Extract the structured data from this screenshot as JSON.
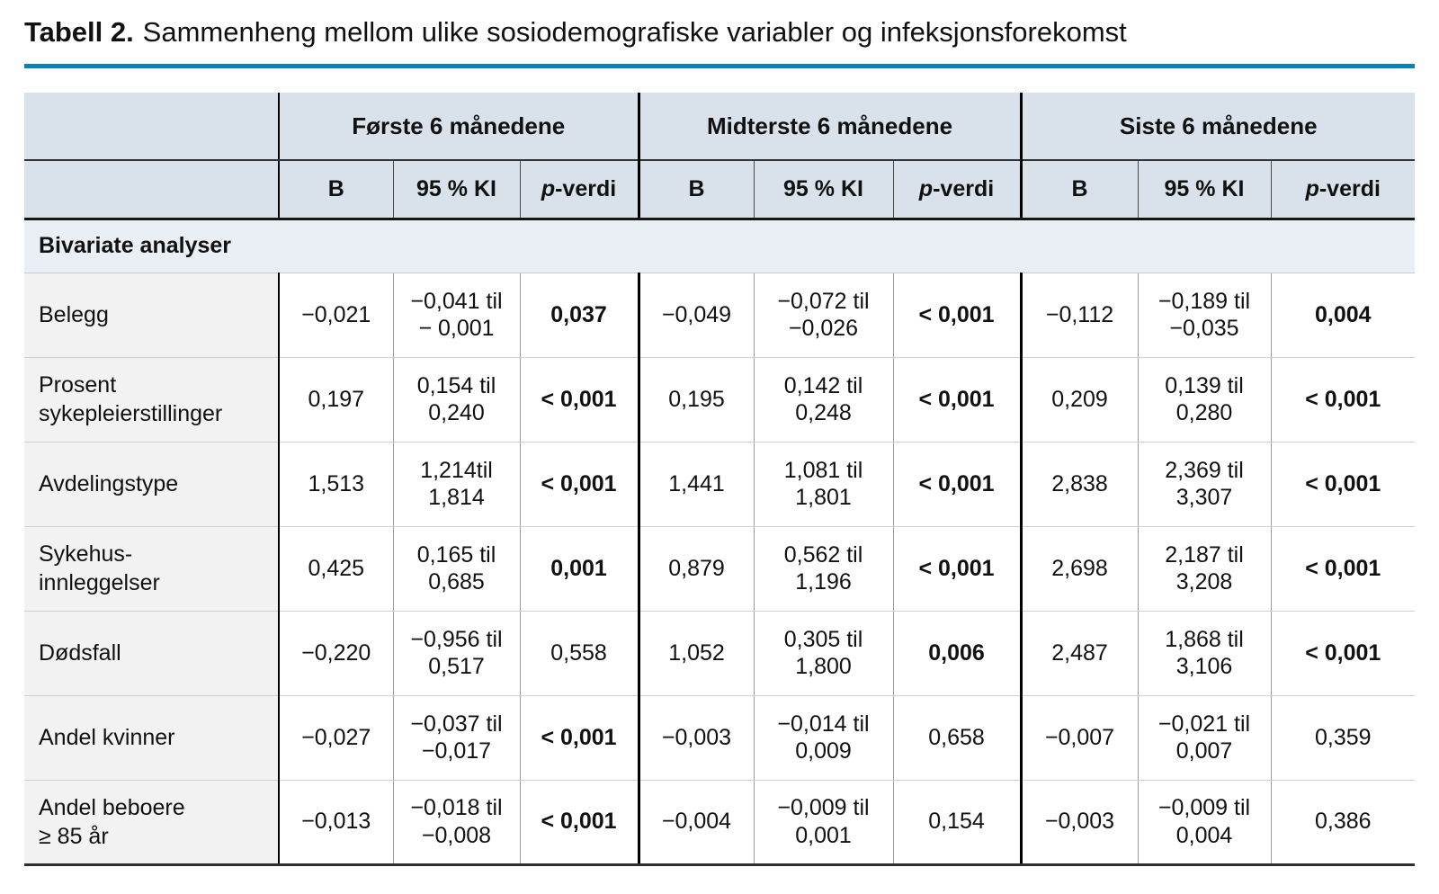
{
  "title": {
    "label": "Tabell 2.",
    "text": "Sammenheng mellom ulike sosiodemografiske variabler og infeksjonsforekomst"
  },
  "colors": {
    "header_background": "#d9e2eb",
    "section_background": "#eaeef5",
    "label_column_background": "#f2f2f2",
    "title_rule": "#0b80b5"
  },
  "table": {
    "groups": [
      {
        "label": "Første 6 månedene"
      },
      {
        "label": "Midterste 6 månedene"
      },
      {
        "label": "Siste 6 månedene"
      }
    ],
    "subheaders": {
      "b": "B",
      "ki": "95 % KI",
      "p_italic": "p",
      "p_rest": "-verdi"
    },
    "section_label": "Bivariate analyser",
    "rows": [
      {
        "label": "Belegg",
        "cells": [
          {
            "text": "−0,021",
            "bold": false
          },
          {
            "text": "−0,041 til\n− 0,001",
            "bold": false
          },
          {
            "text": "0,037",
            "bold": true
          },
          {
            "text": "−0,049",
            "bold": false
          },
          {
            "text": "−0,072 til\n−0,026",
            "bold": false
          },
          {
            "text": "< 0,001",
            "bold": true
          },
          {
            "text": "−0,112",
            "bold": false
          },
          {
            "text": "−0,189 til\n−0,035",
            "bold": false
          },
          {
            "text": "0,004",
            "bold": true
          }
        ]
      },
      {
        "label": "Prosent\nsykepleierstillinger",
        "cells": [
          {
            "text": "0,197",
            "bold": false
          },
          {
            "text": "0,154 til\n0,240",
            "bold": false
          },
          {
            "text": "< 0,001",
            "bold": true
          },
          {
            "text": "0,195",
            "bold": false
          },
          {
            "text": "0,142 til\n0,248",
            "bold": false
          },
          {
            "text": "< 0,001",
            "bold": true
          },
          {
            "text": "0,209",
            "bold": false
          },
          {
            "text": "0,139 til\n0,280",
            "bold": false
          },
          {
            "text": "< 0,001",
            "bold": true
          }
        ]
      },
      {
        "label": "Avdelingstype",
        "cells": [
          {
            "text": "1,513",
            "bold": false
          },
          {
            "text": "1,214til\n1,814",
            "bold": false
          },
          {
            "text": "< 0,001",
            "bold": true
          },
          {
            "text": "1,441",
            "bold": false
          },
          {
            "text": "1,081 til\n1,801",
            "bold": false
          },
          {
            "text": "< 0,001",
            "bold": true
          },
          {
            "text": "2,838",
            "bold": false
          },
          {
            "text": "2,369 til\n3,307",
            "bold": false
          },
          {
            "text": "< 0,001",
            "bold": true
          }
        ]
      },
      {
        "label": "Sykehus-\ninnleggelser",
        "cells": [
          {
            "text": "0,425",
            "bold": false
          },
          {
            "text": "0,165 til\n0,685",
            "bold": false
          },
          {
            "text": "0,001",
            "bold": true
          },
          {
            "text": "0,879",
            "bold": false
          },
          {
            "text": "0,562 til\n1,196",
            "bold": false
          },
          {
            "text": "< 0,001",
            "bold": true
          },
          {
            "text": "2,698",
            "bold": false
          },
          {
            "text": "2,187 til\n3,208",
            "bold": false
          },
          {
            "text": "< 0,001",
            "bold": true
          }
        ]
      },
      {
        "label": "Dødsfall",
        "cells": [
          {
            "text": "−0,220",
            "bold": false
          },
          {
            "text": "−0,956 til\n0,517",
            "bold": false
          },
          {
            "text": "0,558",
            "bold": false
          },
          {
            "text": "1,052",
            "bold": false
          },
          {
            "text": "0,305 til\n1,800",
            "bold": false
          },
          {
            "text": "0,006",
            "bold": true
          },
          {
            "text": "2,487",
            "bold": false
          },
          {
            "text": "1,868 til\n3,106",
            "bold": false
          },
          {
            "text": "< 0,001",
            "bold": true
          }
        ]
      },
      {
        "label": "Andel kvinner",
        "cells": [
          {
            "text": "−0,027",
            "bold": false
          },
          {
            "text": "−0,037 til\n−0,017",
            "bold": false
          },
          {
            "text": "< 0,001",
            "bold": true
          },
          {
            "text": "−0,003",
            "bold": false
          },
          {
            "text": "−0,014 til\n0,009",
            "bold": false
          },
          {
            "text": "0,658",
            "bold": false
          },
          {
            "text": "−0,007",
            "bold": false
          },
          {
            "text": "−0,021 til\n0,007",
            "bold": false
          },
          {
            "text": "0,359",
            "bold": false
          }
        ]
      },
      {
        "label": "Andel beboere\n≥ 85 år",
        "cells": [
          {
            "text": "−0,013",
            "bold": false
          },
          {
            "text": "−0,018 til\n−0,008",
            "bold": false
          },
          {
            "text": "< 0,001",
            "bold": true
          },
          {
            "text": "−0,004",
            "bold": false
          },
          {
            "text": "−0,009 til\n0,001",
            "bold": false
          },
          {
            "text": "0,154",
            "bold": false
          },
          {
            "text": "−0,003",
            "bold": false
          },
          {
            "text": "−0,009 til\n0,004",
            "bold": false
          },
          {
            "text": "0,386",
            "bold": false
          }
        ]
      }
    ]
  }
}
